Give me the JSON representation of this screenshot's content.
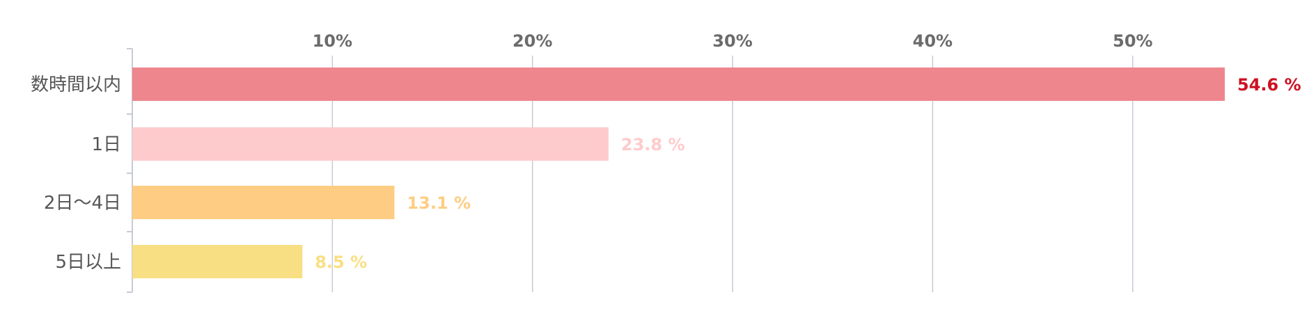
{
  "chart_data": {
    "type": "bar",
    "orientation": "horizontal",
    "title": "",
    "xlabel": "",
    "ylabel": "",
    "xlim": [
      0,
      56.9
    ],
    "x_ticks": [
      10,
      20,
      30,
      40,
      50
    ],
    "x_tick_labels": [
      "10%",
      "20%",
      "30%",
      "40%",
      "50%"
    ],
    "x_axis_position": "top",
    "grid": true,
    "legend": "none",
    "categories": [
      "数時間以内",
      "1日",
      "2日〜4日",
      "5日以上"
    ],
    "values": [
      54.6,
      23.8,
      13.1,
      8.5
    ],
    "value_labels": [
      "54.6 %",
      "23.8 %",
      "13.1 %",
      "8.5 %"
    ],
    "bar_colors": [
      "#ee868d",
      "#fecbcc",
      "#fecd83",
      "#f9df84"
    ],
    "value_label_colors": [
      "#cc1122",
      "#fecbcc",
      "#fecd83",
      "#f9df84"
    ],
    "gridline_color": "#c6cad3",
    "axis_color": "#c6cad3"
  }
}
